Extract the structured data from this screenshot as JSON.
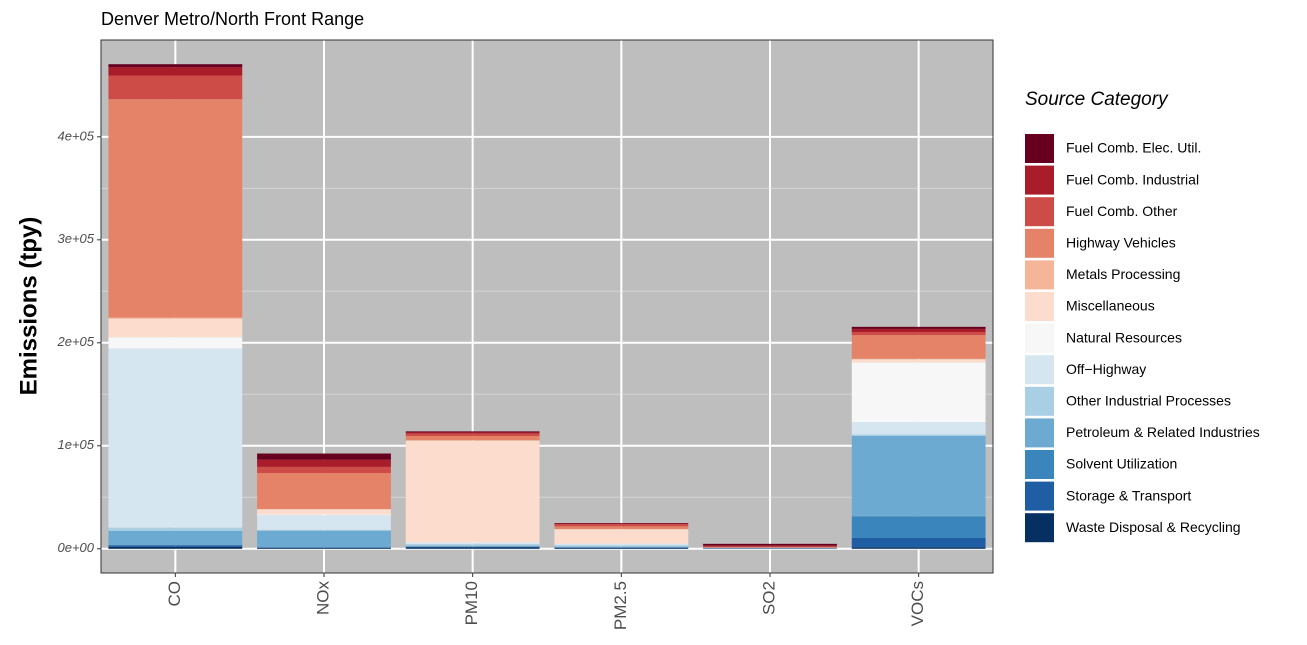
{
  "chart_data": {
    "type": "stacked-bar",
    "title": "Denver Metro/North Front Range",
    "y_label": "Emissions (tpy)",
    "legend_title": "Source Category",
    "categories": [
      "CO",
      "NOx",
      "PM10",
      "PM2.5",
      "SO2",
      "VOCs"
    ],
    "ylim": [
      -23500,
      494000
    ],
    "yticks": [
      {
        "value": 0,
        "label": "0e+00"
      },
      {
        "value": 100000,
        "label": "1e+05"
      },
      {
        "value": 200000,
        "label": "2e+05"
      },
      {
        "value": 300000,
        "label": "3e+05"
      },
      {
        "value": 400000,
        "label": "4e+05"
      }
    ],
    "grid": true,
    "background": "#bebebe",
    "legend_position": "right",
    "series": [
      {
        "name": "Fuel Comb. Elec. Util.",
        "color": "#67001F",
        "values": [
          3000,
          6000,
          1000,
          500,
          1500,
          2000
        ]
      },
      {
        "name": "Fuel Comb. Industrial",
        "color": "#A91D2B",
        "values": [
          8000,
          7000,
          1000,
          700,
          1000,
          3000
        ]
      },
      {
        "name": "Fuel Comb. Other",
        "color": "#CE4C48",
        "values": [
          23000,
          6000,
          2500,
          2000,
          1000,
          3000
        ]
      },
      {
        "name": "Highway Vehicles",
        "color": "#E58368",
        "values": [
          212000,
          35000,
          4000,
          2500,
          200,
          23000
        ]
      },
      {
        "name": "Metals Processing",
        "color": "#F5B599",
        "values": [
          1000,
          0,
          500,
          300,
          0,
          500
        ]
      },
      {
        "name": "Miscellaneous",
        "color": "#FCDCCC",
        "values": [
          18000,
          5000,
          98500,
          14000,
          0,
          3000
        ]
      },
      {
        "name": "Natural Resources",
        "color": "#F7F7F7",
        "values": [
          11000,
          1000,
          500,
          300,
          0,
          58000
        ]
      },
      {
        "name": "Off−Highway",
        "color": "#D6E6F0",
        "values": [
          174000,
          14000,
          1500,
          1400,
          300,
          12000
        ]
      },
      {
        "name": "Other Industrial Processes",
        "color": "#A9CFE4",
        "values": [
          3000,
          1000,
          1500,
          1200,
          0,
          1500
        ]
      },
      {
        "name": "Petroleum & Related Industries",
        "color": "#6DAAD1",
        "values": [
          14000,
          16000,
          1000,
          800,
          500,
          78000
        ]
      },
      {
        "name": "Solvent Utilization",
        "color": "#3A86BC",
        "values": [
          0,
          0,
          0,
          0,
          0,
          21000
        ]
      },
      {
        "name": "Storage & Transport",
        "color": "#1F5EA4",
        "values": [
          1500,
          500,
          500,
          300,
          0,
          9000
        ]
      },
      {
        "name": "Waste Disposal & Recycling",
        "color": "#053061",
        "values": [
          2000,
          1000,
          1500,
          1000,
          300,
          1500
        ]
      }
    ]
  }
}
